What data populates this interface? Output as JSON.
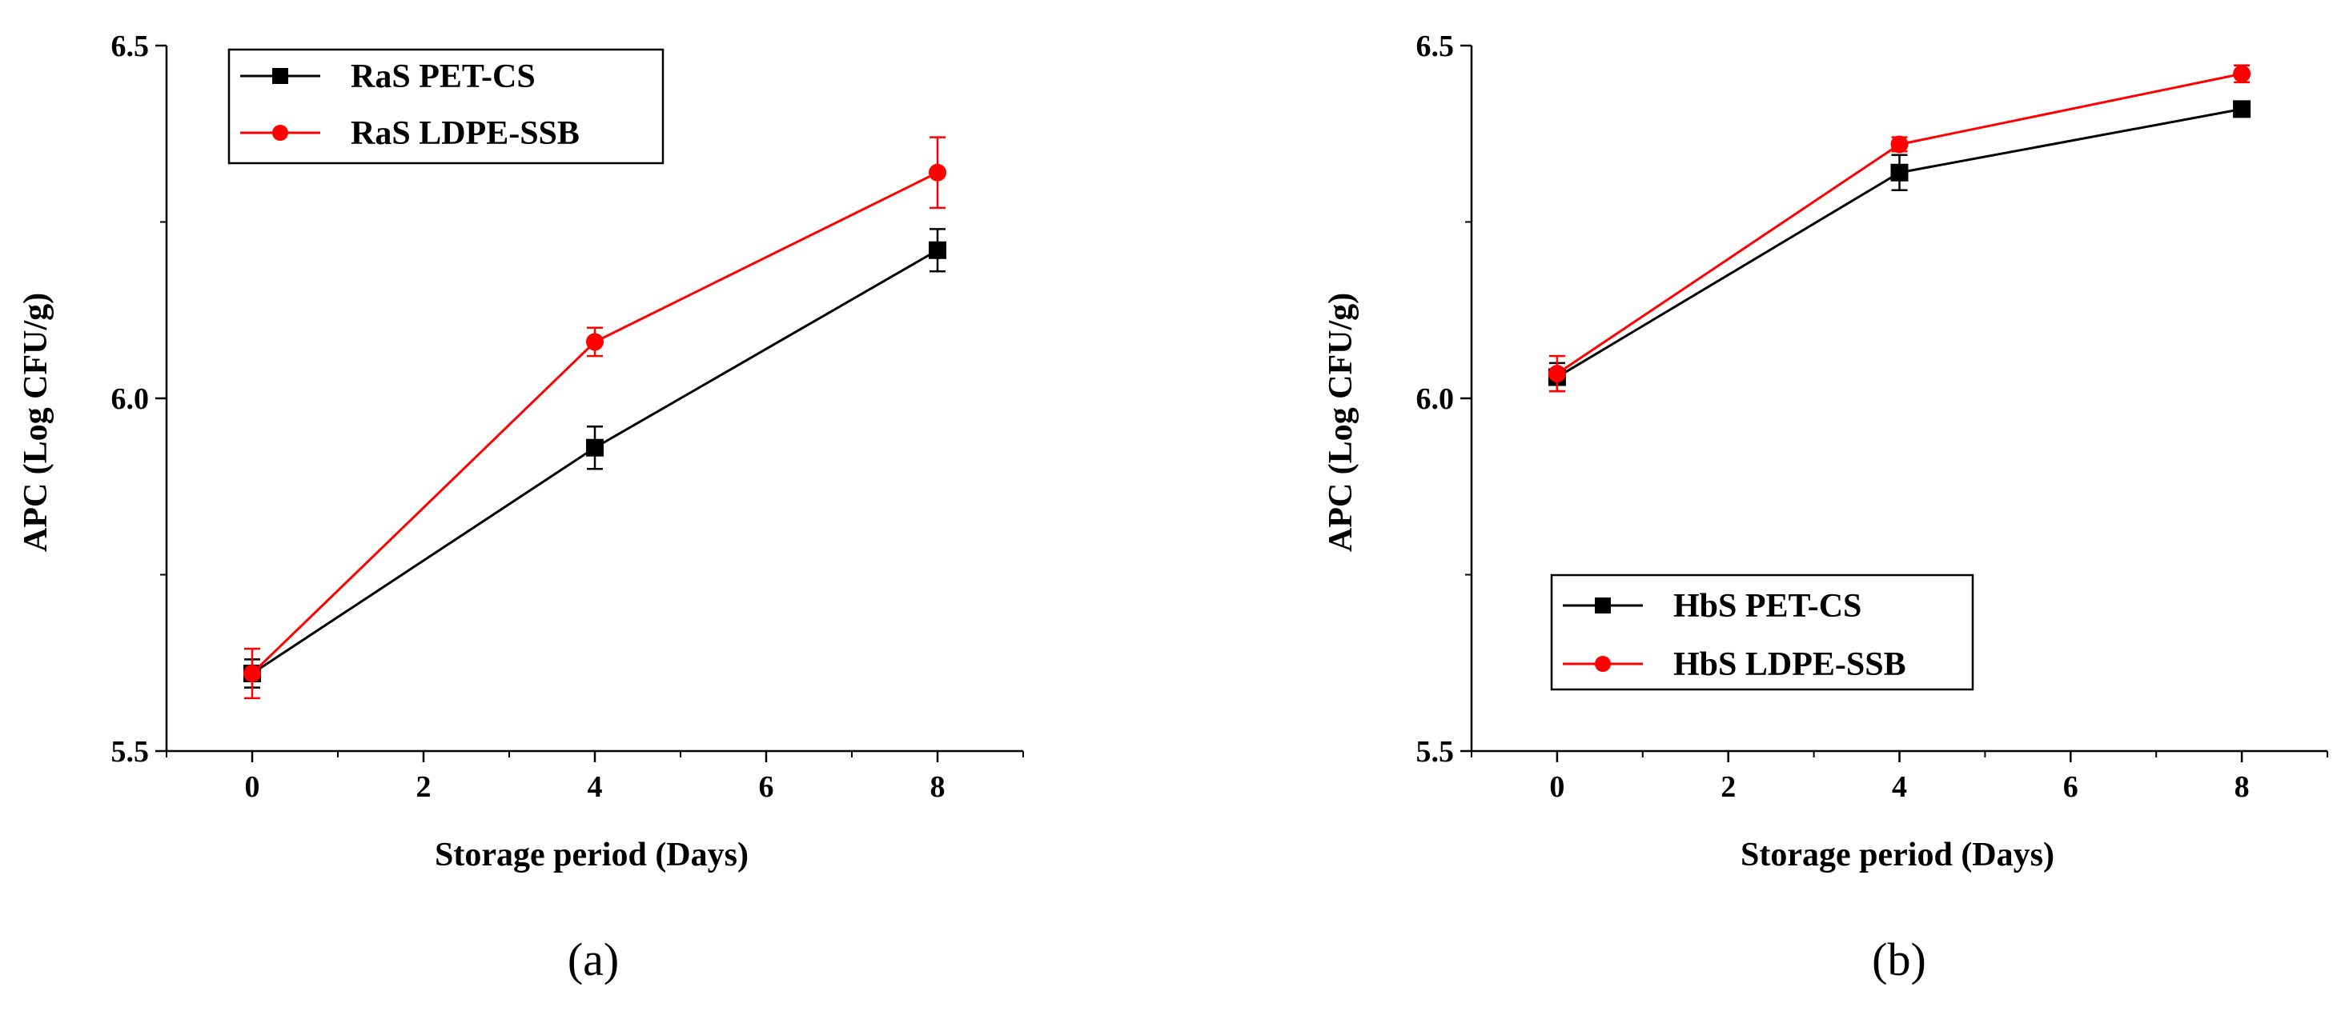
{
  "chart_data": [
    {
      "type": "line",
      "panel_label": "(a)",
      "xlabel": "Storage period (Days)",
      "ylabel": "APC (Log CFU/g)",
      "xlim": [
        -1,
        9
      ],
      "ylim": [
        5.5,
        6.5
      ],
      "xticks": [
        "0",
        "2",
        "4",
        "6",
        "8"
      ],
      "yticks": [
        "5.5",
        "6.0",
        "6.5"
      ],
      "legend_position": "top-left",
      "x": [
        0,
        4,
        8
      ],
      "series": [
        {
          "name": "RaS PET-CS",
          "color": "#000000",
          "marker": "square",
          "values": [
            5.61,
            5.93,
            6.21
          ],
          "errors": [
            0.02,
            0.03,
            0.03
          ]
        },
        {
          "name": "RaS LDPE-SSB",
          "color": "#ff0000",
          "marker": "circle",
          "values": [
            5.61,
            6.08,
            6.32
          ],
          "errors": [
            0.035,
            0.02,
            0.05
          ]
        }
      ]
    },
    {
      "type": "line",
      "panel_label": "(b)",
      "xlabel": "Storage period (Days)",
      "ylabel": "APC (Log CFU/g)",
      "xlim": [
        -1,
        9
      ],
      "ylim": [
        5.5,
        6.5
      ],
      "xticks": [
        "0",
        "2",
        "4",
        "6",
        "8"
      ],
      "yticks": [
        "5.5",
        "6.0",
        "6.5"
      ],
      "legend_position": "bottom-left",
      "x": [
        0,
        4,
        8
      ],
      "series": [
        {
          "name": "HbS PET-CS",
          "color": "#000000",
          "marker": "square",
          "values": [
            6.03,
            6.32,
            6.41
          ],
          "errors": [
            0.02,
            0.025,
            0.01
          ]
        },
        {
          "name": "HbS LDPE-SSB",
          "color": "#ff0000",
          "marker": "circle",
          "values": [
            6.035,
            6.36,
            6.46
          ],
          "errors": [
            0.025,
            0.01,
            0.012
          ]
        }
      ]
    }
  ]
}
